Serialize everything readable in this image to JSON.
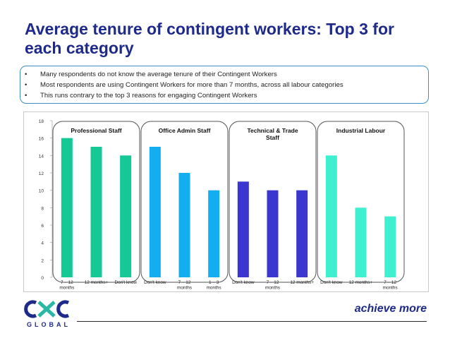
{
  "slide": {
    "title": "Average tenure of contingent workers:  Top 3 for each category",
    "bullets": [
      "Many respondents do not know the average tenure of their Contingent Workers",
      "Most respondents are using Contingent Workers for more than 7 months, across all labour categories",
      "This runs contrary to the top 3 reasons for engaging Contingent Workers"
    ],
    "bullet_symbol": "•",
    "tagline": "achieve more",
    "logo": {
      "text": "CXC",
      "subtext": "GLOBAL"
    }
  },
  "chart_data": {
    "type": "bar",
    "title": "",
    "xlabel": "",
    "ylabel": "",
    "ylim": [
      0,
      18
    ],
    "yticks": [
      "0",
      "2",
      "4",
      "6",
      "8",
      "10",
      "12",
      "14",
      "16",
      "18"
    ],
    "grid": false,
    "groups": [
      {
        "name": "Professional Staff",
        "color": "#14c995",
        "categories": [
          [
            "7 – 12",
            "months"
          ],
          [
            "12 months+"
          ],
          [
            "Don't know"
          ]
        ],
        "values": [
          16,
          15,
          14
        ]
      },
      {
        "name": "Office Admin Staff",
        "color": "#12aef0",
        "categories": [
          [
            "Don't know"
          ],
          [
            "7 – 12",
            "months"
          ],
          [
            "1 – 3",
            "months"
          ]
        ],
        "values": [
          15,
          12,
          10
        ]
      },
      {
        "name": "Technical & Trade Staff",
        "color": "#3a36cf",
        "categories": [
          [
            "Don't know"
          ],
          [
            "7 – 12",
            "months"
          ],
          [
            "12 months+"
          ]
        ],
        "values": [
          11,
          10,
          10
        ]
      },
      {
        "name": "Industrial Labour",
        "color": "#3ef0d0",
        "categories": [
          [
            "Don't know"
          ],
          [
            "12 months+"
          ],
          [
            "7 – 12",
            "months"
          ]
        ],
        "values": [
          14,
          8,
          7
        ]
      }
    ]
  }
}
